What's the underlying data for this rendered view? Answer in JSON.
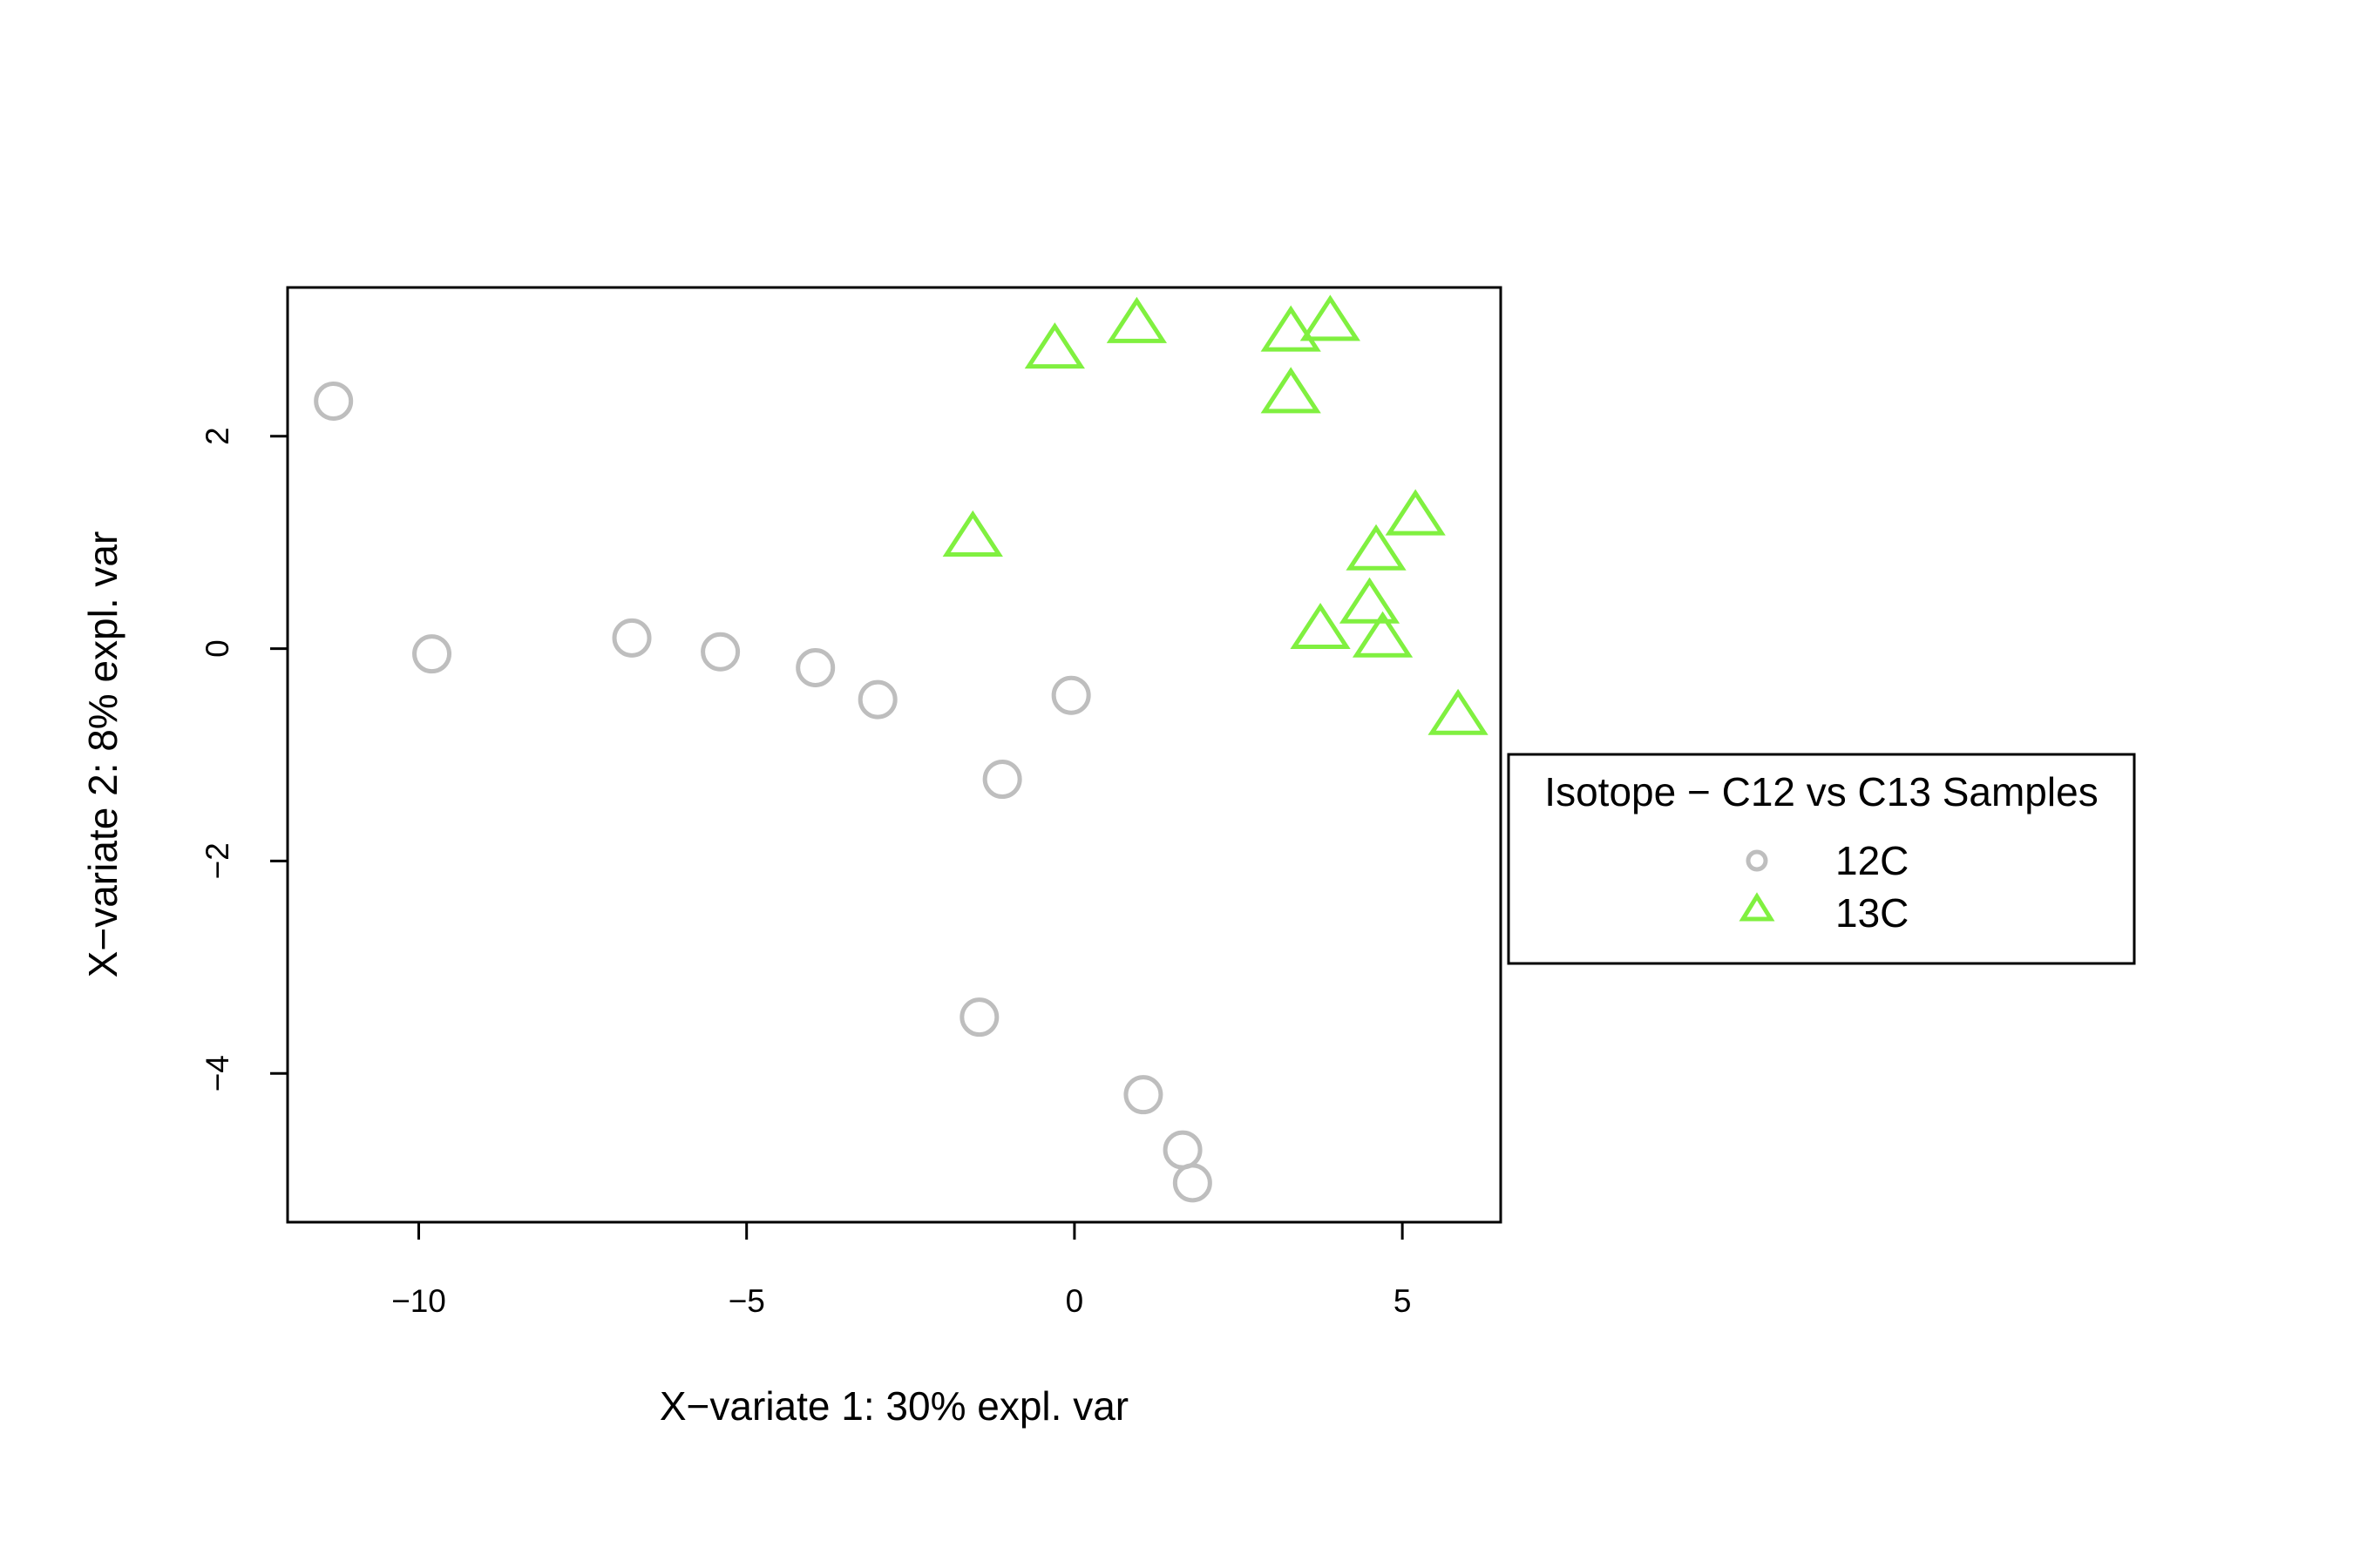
{
  "chart_data": {
    "type": "scatter",
    "xlabel": "X−variate 1: 30% expl. var",
    "ylabel": "X−variate 2: 8% expl. var",
    "xlim": [
      -12,
      6.5
    ],
    "ylim": [
      -5.4,
      3.4
    ],
    "xticks": [
      -10,
      -5,
      0,
      5
    ],
    "xtick_labels": [
      "−10",
      "−5",
      "0",
      "5"
    ],
    "yticks": [
      -4,
      -2,
      0,
      2
    ],
    "ytick_labels": [
      "−4",
      "−2",
      "0",
      "2"
    ],
    "grid": false,
    "legend": {
      "title": "Isotope − C12 vs C13 Samples",
      "placement": "right"
    },
    "series": [
      {
        "name": "12C",
        "marker": "circle",
        "color": "#bebebe",
        "points": [
          [
            -11.3,
            2.33
          ],
          [
            -9.8,
            -0.05
          ],
          [
            -6.75,
            0.1
          ],
          [
            -5.4,
            -0.03
          ],
          [
            -3.95,
            -0.18
          ],
          [
            -3.0,
            -0.48
          ],
          [
            -0.05,
            -0.44
          ],
          [
            -1.1,
            -1.23
          ],
          [
            -1.45,
            -3.47
          ],
          [
            1.05,
            -4.2
          ],
          [
            1.65,
            -4.72
          ],
          [
            1.8,
            -5.03
          ]
        ]
      },
      {
        "name": "13C",
        "marker": "triangle",
        "color": "#80f040",
        "points": [
          [
            -0.3,
            2.8
          ],
          [
            0.95,
            3.04
          ],
          [
            3.3,
            2.96
          ],
          [
            3.9,
            3.06
          ],
          [
            3.3,
            2.38
          ],
          [
            -1.55,
            1.03
          ],
          [
            5.2,
            1.23
          ],
          [
            4.6,
            0.9
          ],
          [
            4.5,
            0.4
          ],
          [
            3.75,
            0.16
          ],
          [
            4.7,
            0.08
          ],
          [
            5.85,
            -0.65
          ]
        ]
      }
    ]
  }
}
